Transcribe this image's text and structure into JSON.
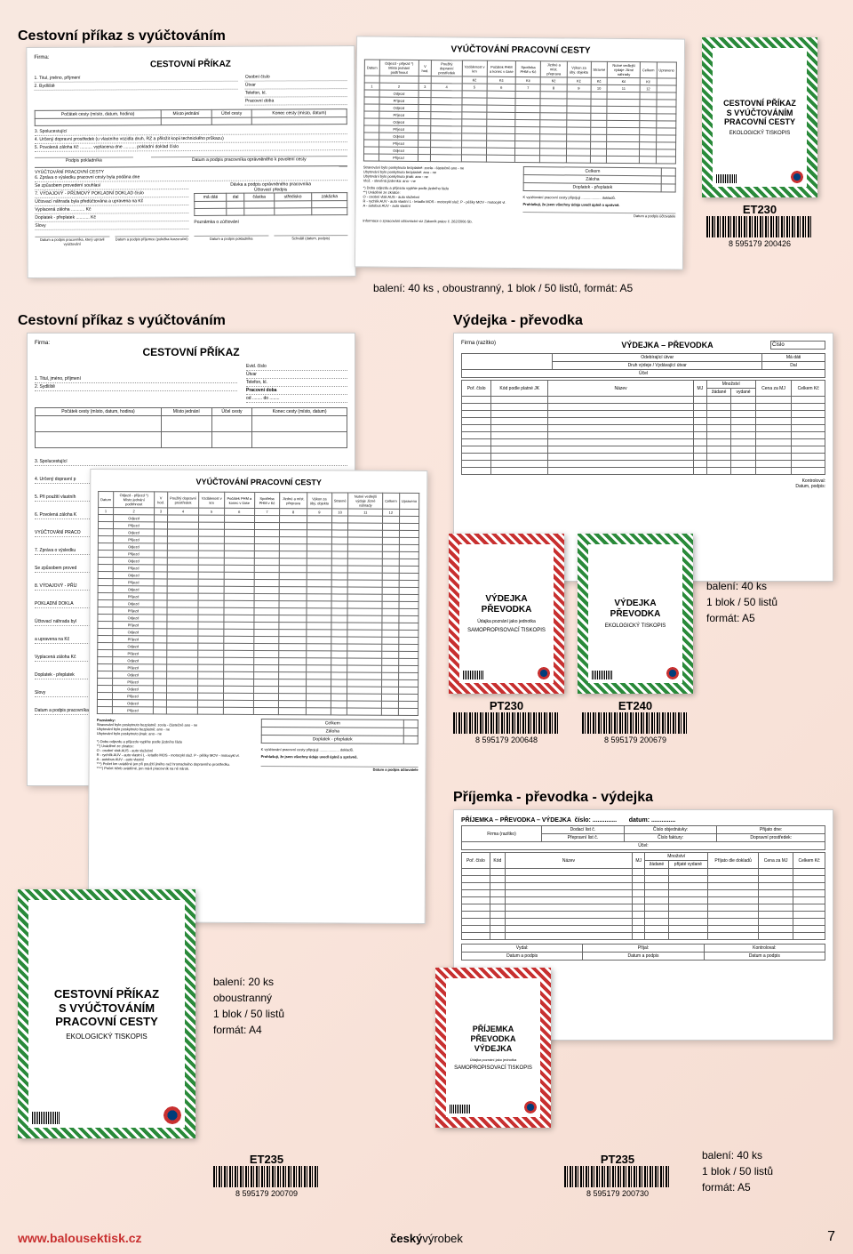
{
  "sections": {
    "s1_title": "Cestovní příkaz s vyúčtováním",
    "s2_title": "Cestovní příkaz s vyúčtováním",
    "s3_title": "Výdejka - převodka",
    "s4_title": "Příjemka - převodka - výdejka"
  },
  "forms": {
    "cestovni_prikaz": {
      "title": "CESTOVNÍ PŘÍKAZ",
      "firma": "Firma:",
      "fields": [
        "1. Titul, jméno, příjmení",
        "2. Bydliště",
        "Počátek cesty (místo, datum, hodina)",
        "Místo jednání",
        "Účel cesty",
        "Konec cesty (místo, datum)",
        "3. Spolucestující",
        "4. Určený dopravní prostředek (u vlastního vozidla druh, RZ a přiložit kopii technického průkazu)",
        "5. Povolená záloha Kč",
        "vyplacena dne",
        "pokladní doklad číslo",
        "Podpis pokladníka",
        "Datum a podpis pracovníka oprávněného k povolení cesty",
        "VYÚČTOVÁNÍ PRACOVNÍ CESTY",
        "6. Zpráva o výsledku pracovní cesty byla podána dne",
        "Se způsobem provedení souhlasí",
        "7. VÝDAJOVÝ - PŘÍJMOVÝ POKLADNÍ DOKLAD číslo",
        "Dávka a podpis oprávněného pracovníka",
        "Účtovací předpis",
        "Účtovací náhrada byla předúčtována a upravena na Kč",
        "Vyplacená záloha",
        "Doplatek - přeplatek",
        "Slovy",
        "Datum a podpis pracovníka, který upravil vyúčtování",
        "Datum a podpis příjemce (položka kurzoruční)",
        "Datum a podpis pokladníka",
        "Schválil (datum, podpis)",
        "Poznámka o zúčtování"
      ],
      "table_headers": [
        "má dáti",
        "dal",
        "částka",
        "středisko",
        "zakázka"
      ],
      "side": [
        "Osobní číslo",
        "Útvar",
        "Telefon, kl.",
        "Pracovní doba"
      ]
    },
    "vyuctovani": {
      "title": "VYÚČTOVÁNÍ PRACOVNÍ CESTY",
      "headers": [
        "Datum",
        "Odjezd - příjezd *) Místo jednání podtrhnout",
        "V hod.",
        "Použitý dopravní prostředek",
        "Vzdálenost v km",
        "Počátek PHM a konec v čase",
        "Spotřeba PHM v Kč",
        "Jízdné a míst. přeprava",
        "Výkon za úby. objektu",
        "Stravné",
        "Nutné vedlejší výdaje Jízné náhrady",
        "Celkem",
        "Upraveno"
      ],
      "col_nums": [
        "1",
        "2",
        "3",
        "4",
        "5",
        "6",
        "7",
        "8",
        "9",
        "10",
        "11",
        "12"
      ],
      "sub_units": [
        "v Kč",
        "Kč",
        "Kč",
        "Kč",
        "Kč",
        "Kč",
        "Kč"
      ],
      "rows": [
        "Odjezd",
        "Příjezd"
      ],
      "bottom": [
        "Stravování bylo poskytnuto bezplatně: zcela - částečně   ano - ne",
        "Ubytování bylo poskytnuto bezplatně:   ano - ne",
        "Ubytování bylo poskytnuto jinak:   ano - ne",
        "Vlož. - slevěná jízdenka:   ano - ne"
      ],
      "legend": [
        "*) Dobu odjezdu a příjezdu vyplňte podle jízdního řádu",
        "**) Uváděné ze zkratce:",
        "O - osobní vlak   AUS - auto služební",
        "R - rychlík   AUV - auto vlastní   L - letadlo   MOS - motocykl služ.   P - pěšky   MOV - motocykl vl.",
        "A - autobus   AUV - auto vlastní",
        "***) Počet km uváděné jen při použití jiného než hromadného dopravního prostředku.",
        "****) Počet tržeb uváděné, jen má-li pracovník na ně nárok."
      ],
      "totals": [
        "Celkem",
        "Záloha",
        "Doplatek - přeplatek"
      ],
      "declare": "K vyúčtování pracovní cesty připojuji .................... dokladů.",
      "confirm": "Prohlašuji, že jsem všechny údaje uvedl úplně a správně.",
      "sig": "Datum a podpis účtovatele",
      "disclaimer": "Informace o zpracování účtovnictví viz Zákoník práce č. 262/2006 Sb."
    },
    "cestovni_prikaz_a4": {
      "title": "CESTOVNÍ PŘÍKAZ",
      "firma": "Firma:",
      "fields": [
        "1. Titul, jméno, příjmení",
        "2. Sydliště"
      ],
      "side": [
        "Evid. číslo",
        "Útvar",
        "Telefon, kl.",
        "Pracovní doba",
        "od",
        "do"
      ],
      "table_headers": [
        "Počátek cesty (místo, datum, hodina)",
        "Místo jednání",
        "Účel cesty",
        "Konec cesty (místo, datum)"
      ],
      "section_labels": [
        "3. Spolucestující",
        "4. Určený dopravní p",
        "5. Při použití vlastníh",
        "6. Povolená záloha K",
        "VYÚČTOVÁNÍ PRACO",
        "7. Zpráva o výsledku",
        "Se způsobem proved",
        "8. VÝDAJOVÝ - PŘÍJ",
        "POKLADNÍ DOKLA",
        "Účtovací náhrada byl",
        "a upravena na Kč",
        "Vyplacená záloha Kč",
        "Doplatek - přeplatek",
        "Slovy",
        "Datum a podpis pracovníka, který upravil vyúčtování"
      ],
      "poznamky": "Poznámky:"
    },
    "vydejka": {
      "title": "VÝDEJKA – PŘEVODKA",
      "firma": "Firma (razítko)",
      "fields": [
        "Druh výdeje",
        "Odebírající útvar",
        "Vydávající útvar",
        "Účel",
        "Číslo",
        "Má dáti",
        "Dal"
      ],
      "headers": [
        "Poř. číslo",
        "Kód podle platné JK",
        "Název",
        "MJ",
        "Množství žádané",
        "Množství vydané",
        "Cena za MJ",
        "Celkem Kč"
      ],
      "sig": [
        "Kontroloval:",
        "Datum, podpis:"
      ]
    },
    "prijemka": {
      "title": "PŘÍJEMKA – PŘEVODKA – VÝDEJKA",
      "cislo": "číslo:",
      "datum": "datum:",
      "firma": "Firma (razítko)",
      "fields": [
        "Dodací list č.",
        "Číslo objednávky:",
        "Přijato dne:",
        "Přepravní list č.",
        "Číslo faktury:",
        "Dopravní prostředek:",
        "Účel:"
      ],
      "headers": [
        "Poř. číslo",
        "Kód",
        "Název",
        "MJ",
        "Množství žádané",
        "Množství přijaté vydané",
        "Příjato dle dokladů",
        "Cena za MJ",
        "Celkem Kč"
      ],
      "sig": [
        "Vydal:",
        "Přijal:",
        "Kontroloval:",
        "Datum a podpis",
        "Datum a podpis",
        "Datum a podpis"
      ]
    }
  },
  "products": {
    "et230": {
      "sku": "ET230",
      "barcode": "8 595179 200426",
      "title_l1": "CESTOVNÍ PŘÍKAZ",
      "title_l2": "S VYÚČTOVÁNÍM",
      "title_l3": "PRACOVNÍ CESTY",
      "sub": "EKOLOGICKÝ TISKOPIS",
      "color": "green"
    },
    "et235": {
      "sku": "ET235",
      "barcode": "8 595179 200709",
      "title_l1": "CESTOVNÍ PŘÍKAZ",
      "title_l2": "S VYÚČTOVÁNÍM",
      "title_l3": "PRACOVNÍ CESTY",
      "sub": "EKOLOGICKÝ TISKOPIS",
      "color": "green"
    },
    "pt230": {
      "sku": "PT230",
      "barcode": "8 595179 200648",
      "title_l1": "VÝDEJKA",
      "title_l2": "PŘEVODKA",
      "sub": "SAMOPROPISOVACÍ TISKOPIS",
      "color": "red"
    },
    "et240": {
      "sku": "ET240",
      "barcode": "8 595179 200679",
      "title_l1": "VÝDEJKA",
      "title_l2": "PŘEVODKA",
      "sub": "EKOLOGICKÝ TISKOPIS",
      "color": "green"
    },
    "pt235": {
      "sku": "PT235",
      "barcode": "8 595179 200730",
      "title_l1": "PŘÍJEMKA",
      "title_l2": "PŘEVODKA",
      "title_l3": "VÝDEJKA",
      "sub": "SAMOPROPISOVACÍ TISKOPIS",
      "color": "red"
    }
  },
  "packaging": {
    "p1": "balení: 40 ks , oboustranný, 1 blok / 50 listů, formát: A5",
    "p2_l1": "balení: 20 ks",
    "p2_l2": "oboustranný",
    "p2_l3": "1 blok / 50 listů",
    "p2_l4": "formát: A4",
    "p3_l1": "balení: 40 ks",
    "p3_l2": "1 blok / 50 listů",
    "p3_l3": "formát: A5",
    "p4_l1": "balení: 40 ks",
    "p4_l2": "1 blok / 50 listů",
    "p4_l3": "formát: A5"
  },
  "footer": {
    "url": "www.balousektisk.cz",
    "center_b": "český",
    "center_n": "výrobek",
    "page": "7"
  }
}
